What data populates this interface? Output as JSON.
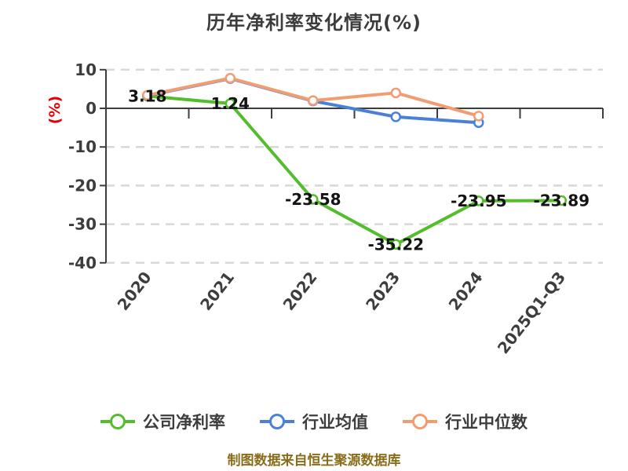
{
  "source_note": "制图数据来自恒生聚源数据库",
  "colors": {
    "company": "#54bd2c",
    "avg": "#4a80d8",
    "median": "#f29c72",
    "axis": "#3d3d3d",
    "grid": "#d8d8d8",
    "label": "#141414",
    "title": "#3c3c3c",
    "ylabel": "#e60000",
    "footer": "#8a6d1a"
  },
  "chart_data": {
    "type": "line",
    "title": "历年净利率变化情况(%)",
    "ylabel": "(%)",
    "xlabel": "",
    "categories": [
      "2020",
      "2021",
      "2022",
      "2023",
      "2024",
      "2025Q1-Q3"
    ],
    "y_ticks": [
      10,
      0,
      -10,
      -20,
      -30,
      -40
    ],
    "ylim": [
      -40,
      10
    ],
    "grid": "horizontal-dashed",
    "legend_position": "bottom",
    "marker": "circle-white-fill",
    "series": [
      {
        "name": "公司净利率",
        "color_key": "company",
        "values": [
          3.18,
          1.24,
          -23.58,
          -35.22,
          -23.95,
          -23.89
        ],
        "point_labels": [
          "3.18",
          "1.24",
          "-23.58",
          "-35.22",
          "-23.95",
          "-23.89"
        ]
      },
      {
        "name": "行业均值",
        "color_key": "avg",
        "values": [
          3.3,
          7.7,
          1.9,
          -2.2,
          -3.7,
          null
        ],
        "point_labels": null
      },
      {
        "name": "行业中位数",
        "color_key": "median",
        "values": [
          3.4,
          7.8,
          2.0,
          4.0,
          -2.0,
          null
        ],
        "point_labels": null
      }
    ]
  }
}
